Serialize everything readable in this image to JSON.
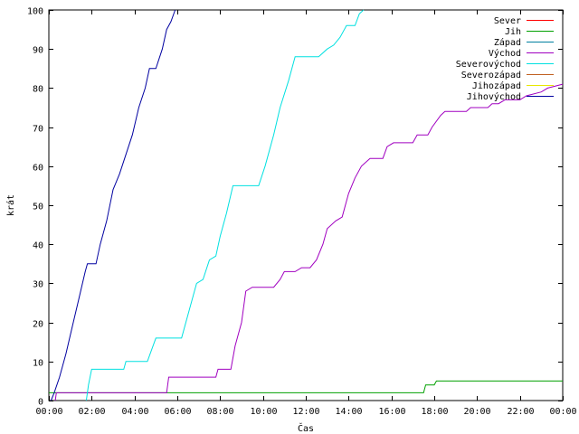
{
  "chart_data": {
    "type": "line",
    "xlabel": "Čas",
    "ylabel": "krát",
    "x_unit": "hours",
    "xlim": [
      0,
      24
    ],
    "ylim": [
      0,
      100
    ],
    "x_ticks": [
      {
        "value": 0,
        "label": "00:00"
      },
      {
        "value": 2,
        "label": "02:00"
      },
      {
        "value": 4,
        "label": "04:00"
      },
      {
        "value": 6,
        "label": "06:00"
      },
      {
        "value": 8,
        "label": "08:00"
      },
      {
        "value": 10,
        "label": "10:00"
      },
      {
        "value": 12,
        "label": "12:00"
      },
      {
        "value": 14,
        "label": "14:00"
      },
      {
        "value": 16,
        "label": "16:00"
      },
      {
        "value": 18,
        "label": "18:00"
      },
      {
        "value": 20,
        "label": "20:00"
      },
      {
        "value": 22,
        "label": "22:00"
      },
      {
        "value": 24,
        "label": "00:00"
      }
    ],
    "y_ticks": [
      {
        "value": 0,
        "label": "0"
      },
      {
        "value": 10,
        "label": "10"
      },
      {
        "value": 20,
        "label": "20"
      },
      {
        "value": 30,
        "label": "30"
      },
      {
        "value": 40,
        "label": "40"
      },
      {
        "value": 50,
        "label": "50"
      },
      {
        "value": 60,
        "label": "60"
      },
      {
        "value": 70,
        "label": "70"
      },
      {
        "value": 80,
        "label": "80"
      },
      {
        "value": 90,
        "label": "90"
      },
      {
        "value": 100,
        "label": "100"
      }
    ],
    "legend_position": "top-right",
    "grid": false,
    "series": [
      {
        "name": "Sever",
        "color": "#ff0000",
        "points": []
      },
      {
        "name": "Jih",
        "color": "#00a000",
        "points": [
          [
            0,
            2
          ],
          [
            17.5,
            2
          ],
          [
            17.6,
            4
          ],
          [
            18.0,
            4
          ],
          [
            18.1,
            5
          ],
          [
            24,
            5
          ]
        ]
      },
      {
        "name": "Západ",
        "color": "#0080a0",
        "points": []
      },
      {
        "name": "Východ",
        "color": "#a000c0",
        "points": [
          [
            0.3,
            0
          ],
          [
            0.35,
            2
          ],
          [
            5.5,
            2
          ],
          [
            5.6,
            6
          ],
          [
            7.8,
            6
          ],
          [
            7.9,
            8
          ],
          [
            8.5,
            8
          ],
          [
            8.7,
            14
          ],
          [
            9.0,
            20
          ],
          [
            9.2,
            28
          ],
          [
            9.5,
            29
          ],
          [
            10.5,
            29
          ],
          [
            10.8,
            31
          ],
          [
            11.0,
            33
          ],
          [
            11.5,
            33
          ],
          [
            11.8,
            34
          ],
          [
            12.2,
            34
          ],
          [
            12.5,
            36
          ],
          [
            12.8,
            40
          ],
          [
            13.0,
            44
          ],
          [
            13.4,
            46
          ],
          [
            13.7,
            47
          ],
          [
            14.0,
            53
          ],
          [
            14.3,
            57
          ],
          [
            14.6,
            60
          ],
          [
            15.0,
            62
          ],
          [
            15.6,
            62
          ],
          [
            15.8,
            65
          ],
          [
            16.1,
            66
          ],
          [
            17.0,
            66
          ],
          [
            17.2,
            68
          ],
          [
            17.7,
            68
          ],
          [
            17.9,
            70
          ],
          [
            18.3,
            73
          ],
          [
            18.5,
            74
          ],
          [
            19.5,
            74
          ],
          [
            19.7,
            75
          ],
          [
            20.5,
            75
          ],
          [
            20.7,
            76
          ],
          [
            21.0,
            76
          ],
          [
            21.3,
            77
          ],
          [
            22.0,
            77
          ],
          [
            22.3,
            78
          ],
          [
            23.0,
            79
          ],
          [
            23.3,
            80
          ],
          [
            24,
            81
          ]
        ]
      },
      {
        "name": "Severovýchod",
        "color": "#00e0e0",
        "points": [
          [
            1.75,
            0
          ],
          [
            1.85,
            4
          ],
          [
            2.0,
            8
          ],
          [
            3.5,
            8
          ],
          [
            3.6,
            10
          ],
          [
            4.6,
            10
          ],
          [
            4.8,
            13
          ],
          [
            5.0,
            16
          ],
          [
            6.2,
            16
          ],
          [
            6.5,
            22
          ],
          [
            6.9,
            30
          ],
          [
            7.2,
            31
          ],
          [
            7.5,
            36
          ],
          [
            7.8,
            37
          ],
          [
            8.0,
            42
          ],
          [
            8.3,
            48
          ],
          [
            8.6,
            55
          ],
          [
            9.8,
            55
          ],
          [
            10.1,
            60
          ],
          [
            10.5,
            68
          ],
          [
            10.8,
            75
          ],
          [
            11.2,
            82
          ],
          [
            11.5,
            88
          ],
          [
            12.6,
            88
          ],
          [
            13.0,
            90
          ],
          [
            13.3,
            91
          ],
          [
            13.6,
            93
          ],
          [
            13.9,
            96
          ],
          [
            14.3,
            96
          ],
          [
            14.5,
            99
          ],
          [
            14.7,
            100
          ]
        ]
      },
      {
        "name": "Severozápad",
        "color": "#c06020",
        "points": []
      },
      {
        "name": "Jihozápad",
        "color": "#e8e800",
        "points": []
      },
      {
        "name": "Jihovýchod",
        "color": "#0000a0",
        "points": [
          [
            0.1,
            0
          ],
          [
            0.25,
            2
          ],
          [
            0.5,
            6
          ],
          [
            0.8,
            12
          ],
          [
            1.1,
            19
          ],
          [
            1.4,
            26
          ],
          [
            1.7,
            33
          ],
          [
            1.8,
            35
          ],
          [
            2.2,
            35
          ],
          [
            2.4,
            40
          ],
          [
            2.7,
            46
          ],
          [
            3.0,
            54
          ],
          [
            3.3,
            58
          ],
          [
            3.6,
            63
          ],
          [
            3.9,
            68
          ],
          [
            4.2,
            75
          ],
          [
            4.5,
            80
          ],
          [
            4.7,
            85
          ],
          [
            5.0,
            85
          ],
          [
            5.3,
            90
          ],
          [
            5.5,
            95
          ],
          [
            5.7,
            97
          ],
          [
            5.9,
            100
          ]
        ]
      }
    ]
  }
}
